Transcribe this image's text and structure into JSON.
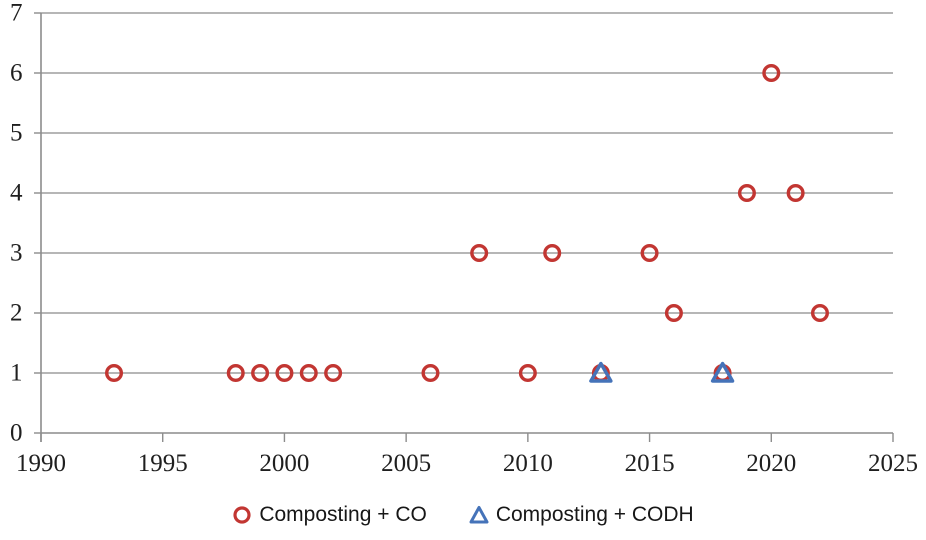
{
  "chart_data": {
    "type": "scatter",
    "title": "",
    "xlabel": "",
    "ylabel": "",
    "xlim": [
      1990,
      2025
    ],
    "ylim": [
      0,
      7
    ],
    "x_ticks": [
      1990,
      1995,
      2000,
      2005,
      2010,
      2015,
      2020,
      2025
    ],
    "y_ticks": [
      0,
      1,
      2,
      3,
      4,
      5,
      6,
      7
    ],
    "grid": "horizontal",
    "legend_position": "bottom-center",
    "series": [
      {
        "name": "Composting + CO",
        "marker": "circle",
        "color": "#c23632",
        "points": [
          [
            1993,
            1
          ],
          [
            1998,
            1
          ],
          [
            1999,
            1
          ],
          [
            2000,
            1
          ],
          [
            2001,
            1
          ],
          [
            2002,
            1
          ],
          [
            2006,
            1
          ],
          [
            2008,
            3
          ],
          [
            2010,
            1
          ],
          [
            2011,
            3
          ],
          [
            2013,
            1
          ],
          [
            2015,
            3
          ],
          [
            2016,
            2
          ],
          [
            2018,
            1
          ],
          [
            2019,
            4
          ],
          [
            2020,
            6
          ],
          [
            2021,
            4
          ],
          [
            2022,
            2
          ]
        ]
      },
      {
        "name": "Composting + CODH",
        "marker": "triangle",
        "color": "#4573b9",
        "points": [
          [
            2013,
            1
          ],
          [
            2018,
            1
          ]
        ]
      }
    ]
  },
  "colors": {
    "gridline": "#9d9d9d",
    "axis": "#8c8c8c",
    "tick_text": "#1f1f1f",
    "legend_text": "#171717"
  }
}
